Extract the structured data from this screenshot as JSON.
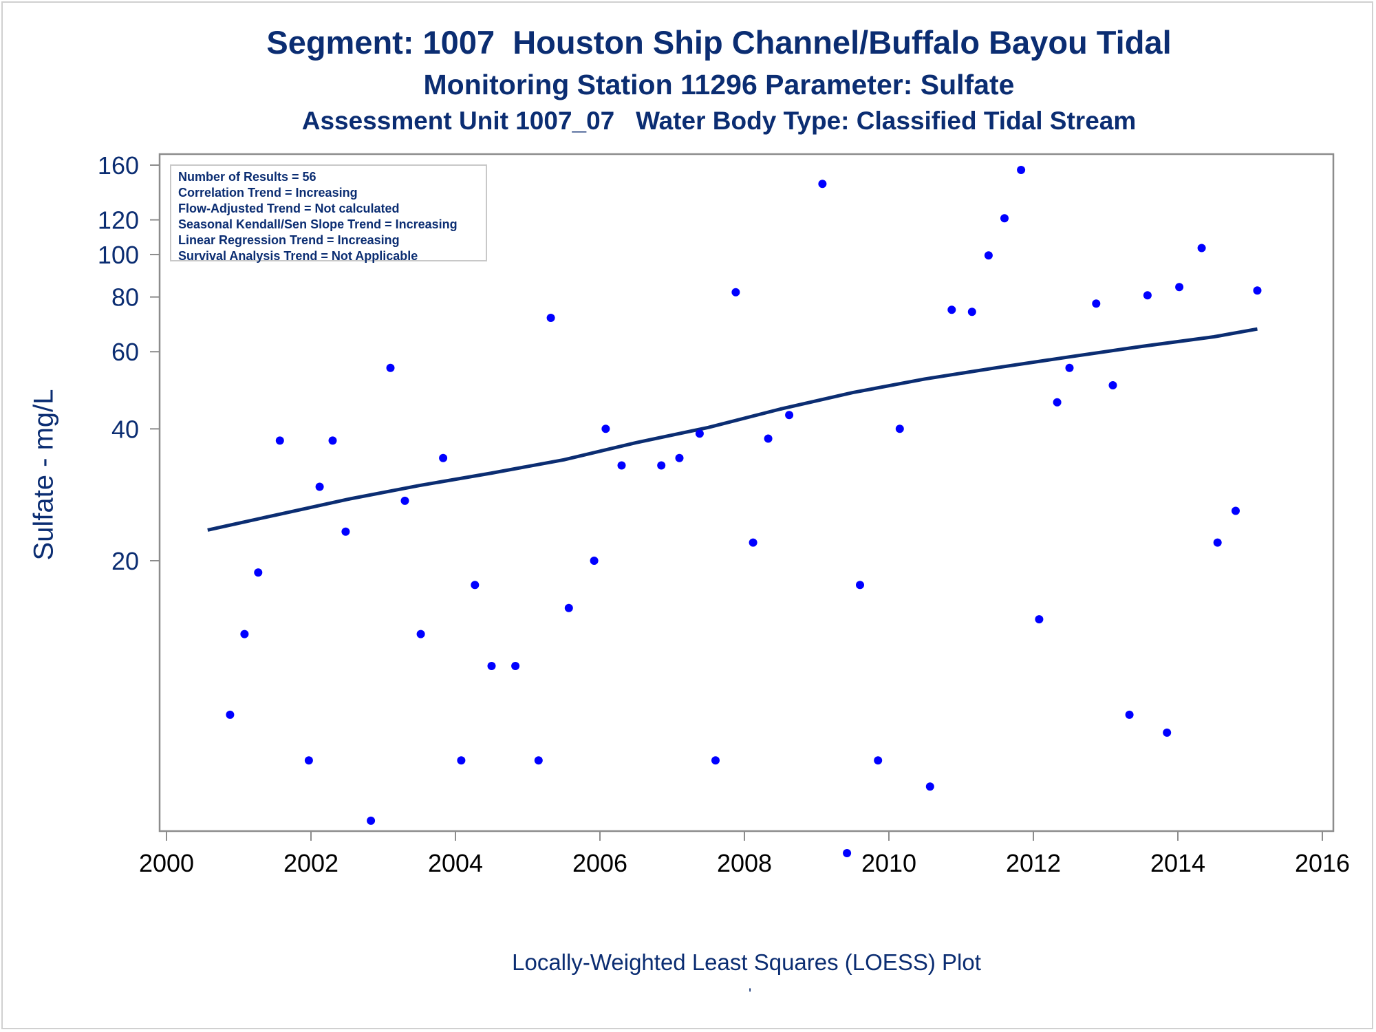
{
  "titles": {
    "line1": "Segment: 1007  Houston Ship Channel/Buffalo Bayou Tidal",
    "line2": "Monitoring Station 11296 Parameter: Sulfate",
    "line3": "Assessment Unit 1007_07   Water Body Type: Classified Tidal Stream"
  },
  "stats_box": [
    "Number of Results = 56",
    "Correlation Trend = Increasing",
    "Flow-Adjusted Trend = Not calculated",
    "Seasonal Kendall/Sen Slope Trend = Increasing",
    "Linear Regression Trend = Increasing",
    "Survival Analysis Trend = Not Applicable"
  ],
  "caption": "Locally-Weighted Least Squares (LOESS) Plot",
  "footnote": "'",
  "colors": {
    "points": "#0000ff",
    "trend": "#0b2d72",
    "text": "#0b2d72",
    "axis": "#8c8c8c"
  },
  "chart_data": {
    "type": "scatter",
    "ylabel": "Sulfate - mg/L",
    "xlabel": "",
    "y_scale": "log",
    "xlim": [
      2000,
      2016
    ],
    "x_ticks": [
      2000,
      2002,
      2004,
      2006,
      2008,
      2010,
      2012,
      2014,
      2016
    ],
    "y_ticks": [
      20,
      40,
      60,
      80,
      100,
      120,
      160
    ],
    "points": [
      [
        2000.57,
        103
      ],
      [
        2000.88,
        8.9
      ],
      [
        2001.08,
        13.6
      ],
      [
        2001.27,
        18.8
      ],
      [
        2001.57,
        37.6
      ],
      [
        2001.97,
        7.0
      ],
      [
        2002.12,
        29.5
      ],
      [
        2002.3,
        37.6
      ],
      [
        2002.48,
        23.3
      ],
      [
        2002.83,
        5.1
      ],
      [
        2003.1,
        55.1
      ],
      [
        2003.3,
        27.4
      ],
      [
        2003.52,
        13.6
      ],
      [
        2003.83,
        34.3
      ],
      [
        2004.08,
        7.0
      ],
      [
        2004.27,
        17.6
      ],
      [
        2004.5,
        11.5
      ],
      [
        2004.83,
        11.5
      ],
      [
        2005.15,
        7.0
      ],
      [
        2005.32,
        71.7
      ],
      [
        2005.57,
        15.6
      ],
      [
        2005.92,
        20.0
      ],
      [
        2006.08,
        40.0
      ],
      [
        2006.3,
        33.0
      ],
      [
        2006.85,
        33.0
      ],
      [
        2007.1,
        34.3
      ],
      [
        2007.38,
        39.0
      ],
      [
        2007.6,
        7.0
      ],
      [
        2007.88,
        82.0
      ],
      [
        2008.12,
        22.0
      ],
      [
        2008.33,
        38.0
      ],
      [
        2008.62,
        43.0
      ],
      [
        2009.08,
        145
      ],
      [
        2009.42,
        4.3
      ],
      [
        2009.6,
        17.6
      ],
      [
        2009.85,
        7.0
      ],
      [
        2010.15,
        40.0
      ],
      [
        2010.57,
        6.1
      ],
      [
        2010.87,
        74.8
      ],
      [
        2011.15,
        74.0
      ],
      [
        2011.38,
        99.5
      ],
      [
        2011.6,
        121
      ],
      [
        2011.83,
        156
      ],
      [
        2012.08,
        14.7
      ],
      [
        2012.33,
        46.0
      ],
      [
        2012.5,
        55.1
      ],
      [
        2012.87,
        77.3
      ],
      [
        2013.1,
        50.3
      ],
      [
        2013.33,
        8.9
      ],
      [
        2013.58,
        80.7
      ],
      [
        2013.85,
        8.1
      ],
      [
        2014.02,
        84.3
      ],
      [
        2014.33,
        103.5
      ],
      [
        2014.55,
        22.0
      ],
      [
        2014.8,
        26.0
      ],
      [
        2015.1,
        82.8
      ]
    ],
    "trend_line": {
      "name": "",
      "x": [
        2000.57,
        2001.5,
        2002.5,
        2003.5,
        2004.5,
        2005.5,
        2006.5,
        2007.5,
        2008.5,
        2009.5,
        2010.5,
        2011.5,
        2012.5,
        2013.5,
        2014.5,
        2015.1
      ],
      "y": [
        23.5,
        25.4,
        27.6,
        29.7,
        31.7,
        34.0,
        37.2,
        40.3,
        44.4,
        48.4,
        52.0,
        55.2,
        58.4,
        61.7,
        64.9,
        67.6
      ]
    }
  }
}
